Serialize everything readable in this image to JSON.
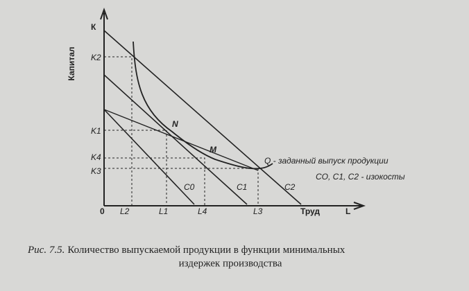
{
  "axes": {
    "y_letter": "К",
    "y_label": "Капитал",
    "origin": "0",
    "x_label": "Труд",
    "x_letter": "L"
  },
  "y_marks": [
    "K2",
    "K1",
    "K4",
    "K3"
  ],
  "x_marks": [
    "L2",
    "L1",
    "L4",
    "L3"
  ],
  "points": [
    "N",
    "M"
  ],
  "isoquant_label": "Q - заданный выпуск продукции",
  "isocost_note": "CO, C1, C2 - изокосты",
  "isocosts": [
    "C0",
    "C1",
    "C2"
  ],
  "caption": {
    "number": "Рис. 7.5.",
    "text_line1": "Количество выпускаемой продукции в функции минимальных",
    "text_line2": "издержек производства"
  }
}
